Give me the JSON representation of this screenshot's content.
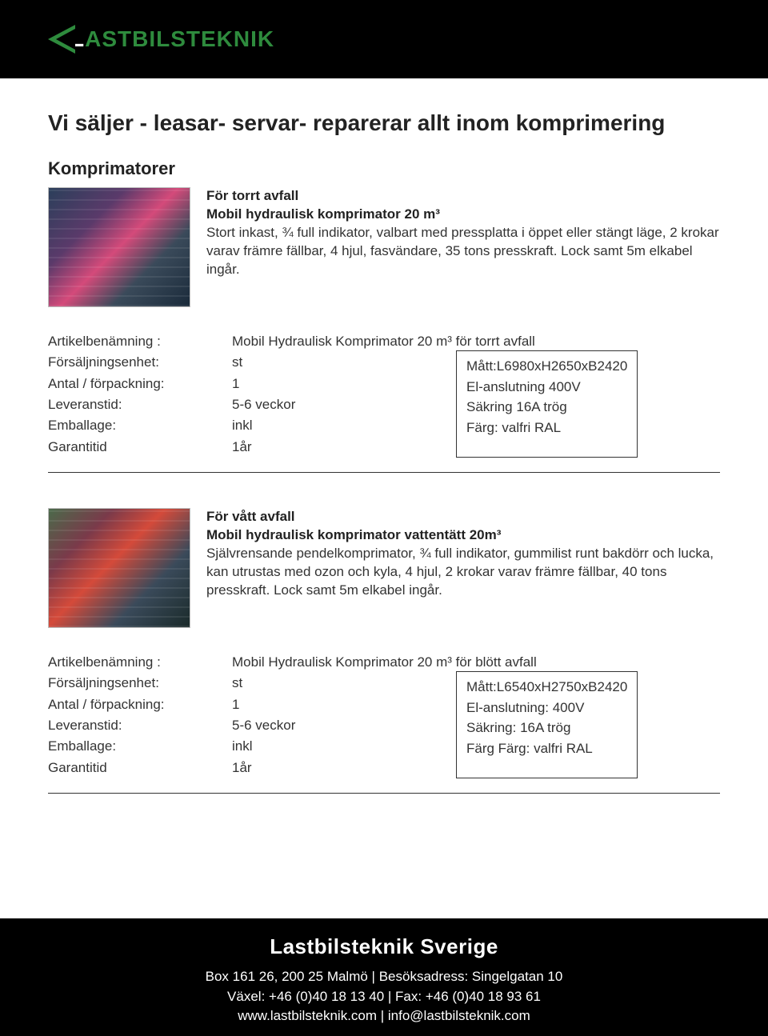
{
  "logo": {
    "brand_first": "L",
    "brand_rest": "ASTBILSTEKNIK",
    "brand_color": "#2e8b3d"
  },
  "page_title": "Vi säljer - leasar- servar- reparerar allt inom komprimering",
  "section_title": "Komprimatorer",
  "products": [
    {
      "header_line1": "För torrt avfall",
      "header_line2": "Mobil hydraulisk komprimator 20 m³",
      "description": "Stort inkast, ¾ full indikator, valbart med pressplatta i öppet eller stängt läge, 2 krokar varav främre fällbar, 4 hjul, fasvändare, 35 tons presskraft. Lock samt 5m elkabel ingår.",
      "spec_labels": {
        "l1": "Artikelbenämning :",
        "l2": "Försäljningsenhet:",
        "l3": "Antal / förpackning:",
        "l4": "Leveranstid:",
        "l5": "Emballage:",
        "l6": "Garantitid"
      },
      "spec_values": {
        "v1": "Mobil Hydraulisk Komprimator 20 m³ för torrt avfall",
        "v2": "st",
        "v3": "1",
        "v4": "5-6 veckor",
        "v5": "inkl",
        "v6": "1år"
      },
      "box": {
        "b1": "Mått:L6980xH2650xB2420",
        "b2": "El-anslutning 400V",
        "b3": "Säkring 16A trög",
        "b4": "Färg: valfri RAL"
      }
    },
    {
      "header_line1": "För vått avfall",
      "header_line2": "Mobil hydraulisk komprimator vattentätt 20m³",
      "description": "Självrensande pendelkomprimator, ¾ full indikator, gummilist runt bakdörr och lucka, kan utrustas med ozon och kyla, 4 hjul, 2 krokar varav främre fällbar, 40 tons presskraft. Lock samt 5m elkabel ingår.",
      "spec_labels": {
        "l1": "Artikelbenämning :",
        "l2": "Försäljningsenhet:",
        "l3": "Antal / förpackning:",
        "l4": "Leveranstid:",
        "l5": "Emballage:",
        "l6": "Garantitid"
      },
      "spec_values": {
        "v1": "Mobil Hydraulisk Komprimator 20 m³ för blött avfall",
        "v2": "st",
        "v3": "1",
        "v4": "5-6 veckor",
        "v5": "inkl",
        "v6": "1år"
      },
      "box": {
        "b1": "Mått:L6540xH2750xB2420",
        "b2": "El-anslutning: 400V",
        "b3": "Säkring: 16A trög",
        "b4": "Färg Färg: valfri RAL"
      }
    }
  ],
  "footer": {
    "title": "Lastbilsteknik Sverige",
    "line1": "Box 161 26, 200 25 Malmö | Besöksadress: Singelgatan 10",
    "line2": "Växel: +46 (0)40 18 13 40 | Fax: +46 (0)40 18 93 61",
    "line3": "www.lastbilsteknik.com | info@lastbilsteknik.com"
  },
  "colors": {
    "header_bg": "#000000",
    "footer_bg": "#000000",
    "text": "#333333",
    "brand_green": "#2e8b3d"
  }
}
